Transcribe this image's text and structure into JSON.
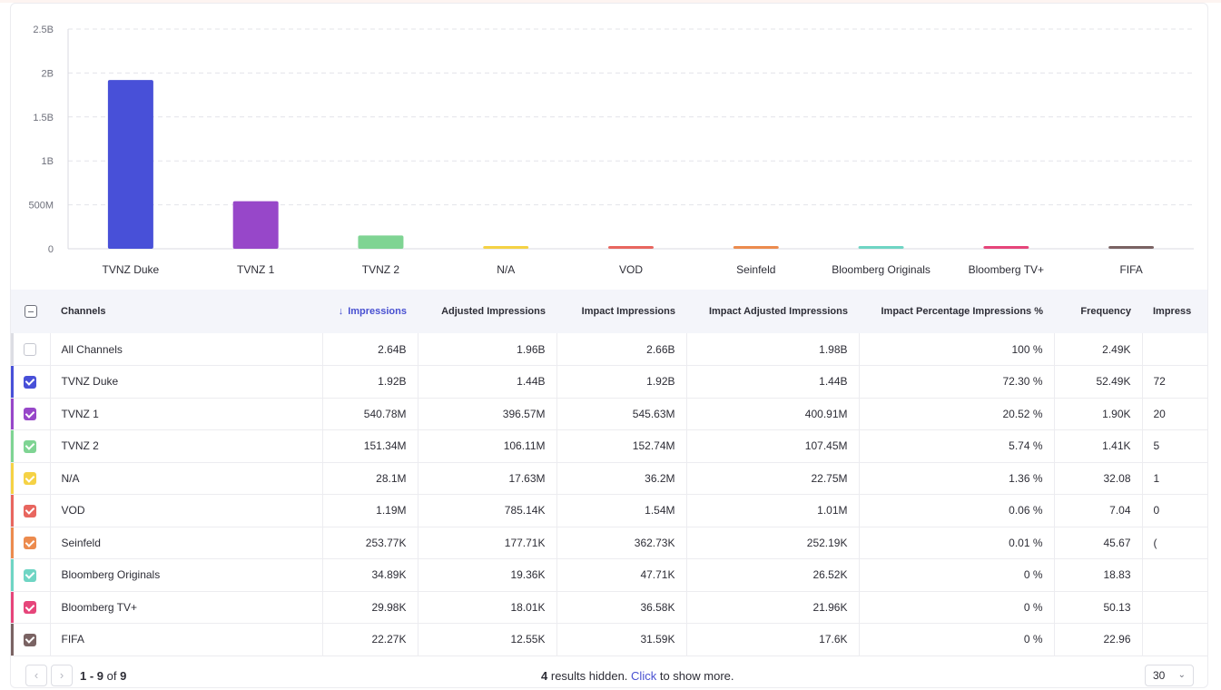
{
  "chart_data": {
    "type": "bar",
    "categories": [
      "TVNZ Duke",
      "TVNZ 1",
      "TVNZ 2",
      "N/A",
      "VOD",
      "Seinfeld",
      "Bloomberg Originals",
      "Bloomberg TV+",
      "FIFA"
    ],
    "values": [
      1920000000,
      540780000,
      151340000,
      28100000,
      1190000,
      253770,
      34890,
      29980,
      22270
    ],
    "colors": [
      "#4850d8",
      "#9747c9",
      "#7fd493",
      "#f5d245",
      "#e8665f",
      "#ec8b4e",
      "#6fd5c4",
      "#e6457a",
      "#7a6363"
    ],
    "yticks": [
      "0",
      "500M",
      "1B",
      "1.5B",
      "2B",
      "2.5B"
    ],
    "ylim": [
      0,
      2500000000
    ],
    "grid": true
  },
  "table": {
    "headers": {
      "channels": "Channels",
      "impressions": "Impressions",
      "adjusted": "Adjusted Impressions",
      "impact": "Impact Impressions",
      "impact_adjusted": "Impact Adjusted Impressions",
      "impact_pct": "Impact Percentage Impressions %",
      "frequency": "Frequency",
      "extra": "Impress"
    },
    "rows": [
      {
        "name": "All Channels",
        "impressions": "2.64B",
        "adjusted": "1.96B",
        "impact": "2.66B",
        "impact_adjusted": "1.98B",
        "impact_pct": "100 %",
        "frequency": "2.49K",
        "extra": "",
        "checked": false,
        "color": "#dcdde3"
      },
      {
        "name": "TVNZ Duke",
        "impressions": "1.92B",
        "adjusted": "1.44B",
        "impact": "1.92B",
        "impact_adjusted": "1.44B",
        "impact_pct": "72.30 %",
        "frequency": "52.49K",
        "extra": "72",
        "checked": true,
        "color": "#4850d8"
      },
      {
        "name": "TVNZ 1",
        "impressions": "540.78M",
        "adjusted": "396.57M",
        "impact": "545.63M",
        "impact_adjusted": "400.91M",
        "impact_pct": "20.52 %",
        "frequency": "1.90K",
        "extra": "20",
        "checked": true,
        "color": "#9747c9"
      },
      {
        "name": "TVNZ 2",
        "impressions": "151.34M",
        "adjusted": "106.11M",
        "impact": "152.74M",
        "impact_adjusted": "107.45M",
        "impact_pct": "5.74 %",
        "frequency": "1.41K",
        "extra": "5",
        "checked": true,
        "color": "#7fd493"
      },
      {
        "name": "N/A",
        "impressions": "28.1M",
        "adjusted": "17.63M",
        "impact": "36.2M",
        "impact_adjusted": "22.75M",
        "impact_pct": "1.36 %",
        "frequency": "32.08",
        "extra": "1",
        "checked": true,
        "color": "#f5d245"
      },
      {
        "name": "VOD",
        "impressions": "1.19M",
        "adjusted": "785.14K",
        "impact": "1.54M",
        "impact_adjusted": "1.01M",
        "impact_pct": "0.06 %",
        "frequency": "7.04",
        "extra": "0",
        "checked": true,
        "color": "#e8665f"
      },
      {
        "name": "Seinfeld",
        "impressions": "253.77K",
        "adjusted": "177.71K",
        "impact": "362.73K",
        "impact_adjusted": "252.19K",
        "impact_pct": "0.01 %",
        "frequency": "45.67",
        "extra": "(",
        "checked": true,
        "color": "#ec8b4e"
      },
      {
        "name": "Bloomberg Originals",
        "impressions": "34.89K",
        "adjusted": "19.36K",
        "impact": "47.71K",
        "impact_adjusted": "26.52K",
        "impact_pct": "0 %",
        "frequency": "18.83",
        "extra": "",
        "checked": true,
        "color": "#6fd5c4"
      },
      {
        "name": "Bloomberg TV+",
        "impressions": "29.98K",
        "adjusted": "18.01K",
        "impact": "36.58K",
        "impact_adjusted": "21.96K",
        "impact_pct": "0 %",
        "frequency": "50.13",
        "extra": "",
        "checked": true,
        "color": "#e6457a"
      },
      {
        "name": "FIFA",
        "impressions": "22.27K",
        "adjusted": "12.55K",
        "impact": "31.59K",
        "impact_adjusted": "17.6K",
        "impact_pct": "0 %",
        "frequency": "22.96",
        "extra": "",
        "checked": true,
        "color": "#7a6363"
      }
    ]
  },
  "footer": {
    "prev_icon": "chevron-left-icon",
    "next_icon": "chevron-right-icon",
    "range": "1 - 9",
    "of_text": "of",
    "total": "9",
    "hidden_count": "4",
    "hidden_text": "results hidden.",
    "click_text": "Click",
    "show_more_text": "to show more.",
    "page_size": "30"
  }
}
